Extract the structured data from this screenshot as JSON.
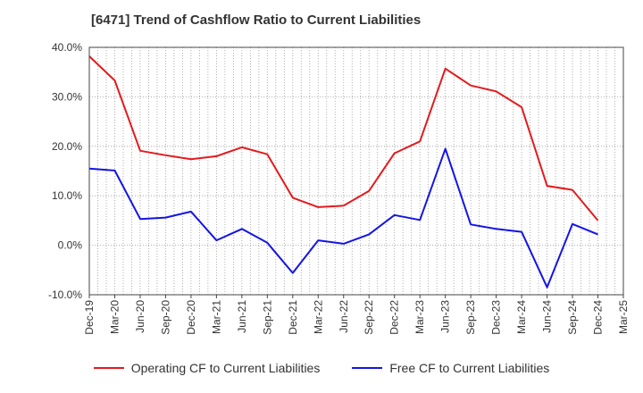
{
  "title": "[6471]  Trend of Cashflow Ratio to Current Liabilities",
  "chart_data": {
    "type": "line",
    "title": "[6471]  Trend of Cashflow Ratio to Current Liabilities",
    "x": [
      "Dec-19",
      "Mar-20",
      "Jun-20",
      "Sep-20",
      "Dec-20",
      "Mar-21",
      "Jun-21",
      "Sep-21",
      "Dec-21",
      "Mar-22",
      "Jun-22",
      "Sep-22",
      "Dec-22",
      "Mar-23",
      "Jun-23",
      "Sep-23",
      "Dec-23",
      "Mar-24",
      "Jun-24",
      "Sep-24",
      "Dec-24"
    ],
    "x_ticks": [
      "Dec-19",
      "Mar-20",
      "Jun-20",
      "Sep-20",
      "Dec-20",
      "Mar-21",
      "Jun-21",
      "Sep-21",
      "Dec-21",
      "Mar-22",
      "Jun-22",
      "Sep-22",
      "Dec-22",
      "Mar-23",
      "Jun-23",
      "Sep-23",
      "Dec-23",
      "Mar-24",
      "Jun-24",
      "Sep-24",
      "Dec-24",
      "Mar-25"
    ],
    "y_ticks": [
      "40.0%",
      "30.0%",
      "20.0%",
      "10.0%",
      "0.0%",
      "-10.0%"
    ],
    "ylim": [
      -10,
      40
    ],
    "grid": true,
    "legend_position": "bottom",
    "series": [
      {
        "name": "Operating CF to Current Liabilities",
        "color": "#e31a1c",
        "values": [
          38.2,
          33.3,
          19.1,
          18.2,
          17.4,
          18.0,
          19.8,
          18.4,
          9.6,
          7.7,
          8.0,
          11.0,
          18.6,
          21.0,
          35.7,
          32.3,
          31.1,
          27.9,
          12.0,
          11.2,
          5.0
        ]
      },
      {
        "name": "Free CF to Current Liabilities",
        "color": "#1414e6",
        "values": [
          15.5,
          15.1,
          5.3,
          5.6,
          6.8,
          1.0,
          3.3,
          0.5,
          -5.6,
          1.0,
          0.3,
          2.2,
          6.1,
          5.1,
          19.5,
          4.2,
          3.3,
          2.7,
          -8.5,
          4.3,
          2.2
        ]
      }
    ]
  },
  "legend": {
    "operating_label": "Operating CF to Current Liabilities",
    "free_label": "Free CF to Current Liabilities"
  }
}
